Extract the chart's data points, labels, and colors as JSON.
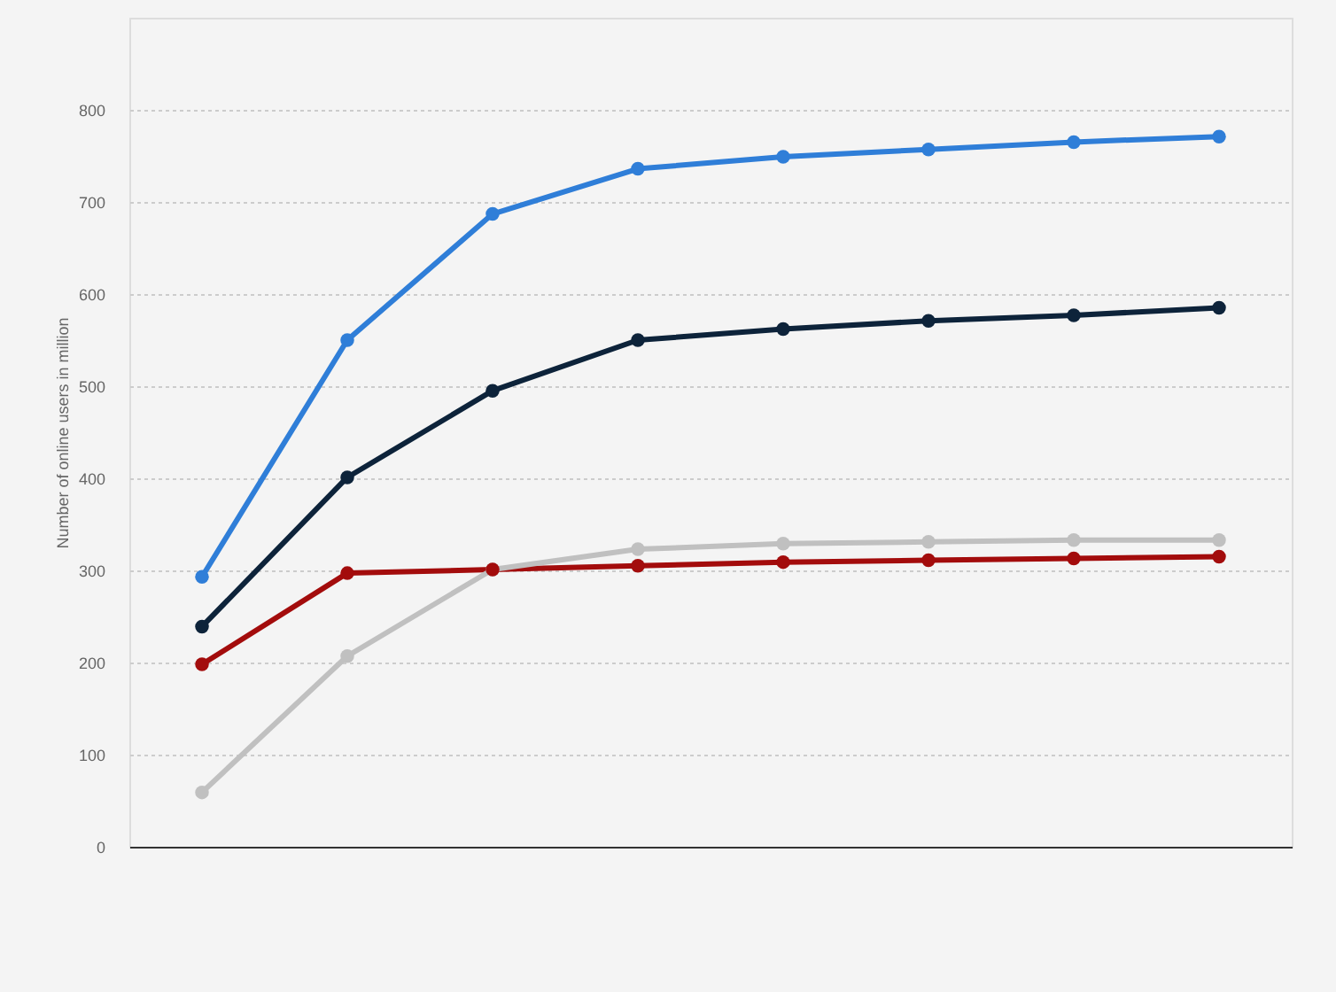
{
  "chart_data": {
    "type": "line",
    "ylabel": "Number of online users in million",
    "categories": [
      null,
      null,
      null,
      null,
      null,
      null,
      null,
      null
    ],
    "series": [
      {
        "color": "#2f7ed8",
        "values": [
          293,
          550,
          687,
          736,
          749,
          757,
          765,
          771
        ]
      },
      {
        "color": "#0d233a",
        "values": [
          239,
          401,
          495,
          550,
          562,
          571,
          577,
          585
        ]
      },
      {
        "color": "#a30c0c",
        "values": [
          198,
          297,
          301,
          305,
          309,
          311,
          313,
          315
        ]
      },
      {
        "color": "#c0c0c0",
        "values": [
          59,
          207,
          301,
          323,
          329,
          331,
          333,
          333
        ]
      }
    ],
    "ylim": [
      0,
      900
    ],
    "yticks": [
      0,
      100,
      200,
      300,
      400,
      500,
      600,
      700,
      800
    ],
    "grid": "y",
    "marker": "circle",
    "line_style": "solid"
  }
}
